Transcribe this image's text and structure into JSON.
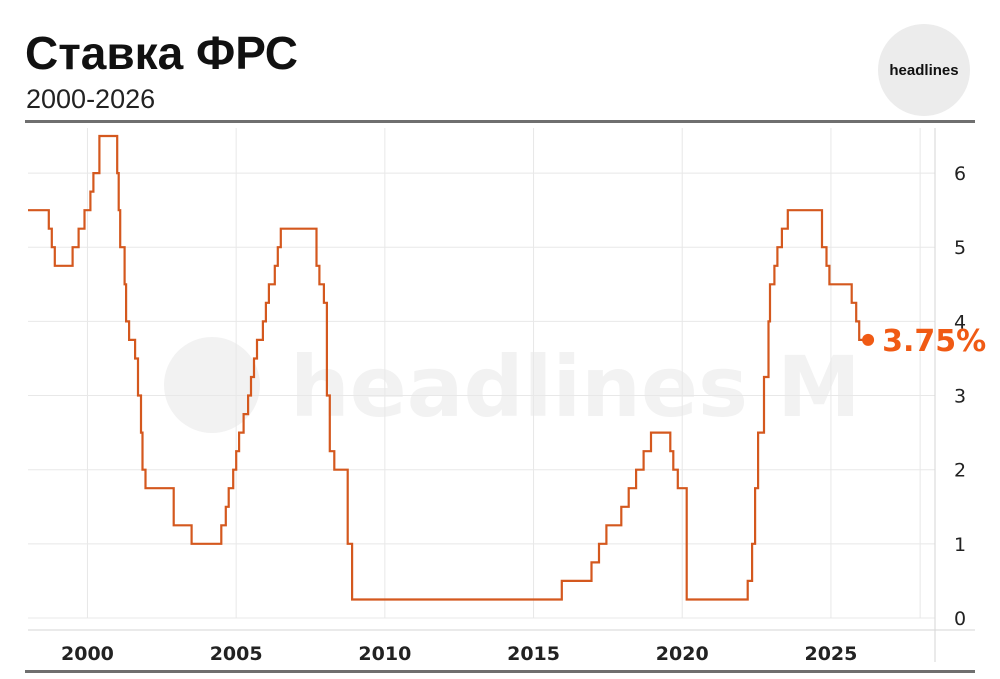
{
  "header": {
    "title": "Ставка ФРС",
    "subtitle": "2000-2026",
    "logo_text": "headlines"
  },
  "watermark": {
    "text": "headlines M"
  },
  "colors": {
    "line": "#d4581e",
    "end_label": "#f05a14",
    "grid": "#e8e8e8",
    "rule": "#6f6f6f"
  },
  "chart_data": {
    "type": "line",
    "step": true,
    "title": "Ставка ФРС",
    "subtitle": "2000-2026",
    "xlabel": "",
    "ylabel": "",
    "xlim": [
      1998.0,
      2028.5
    ],
    "ylim": [
      0,
      6.5
    ],
    "x_ticks": [
      2000,
      2005,
      2010,
      2015,
      2020,
      2025
    ],
    "y_ticks": [
      0,
      1,
      2,
      3,
      4,
      5,
      6
    ],
    "y_axis_side": "right",
    "grid": true,
    "legend": "none",
    "end_label": "3.75%",
    "series": [
      {
        "color": "#d4581e",
        "points": [
          [
            1998.0,
            5.5
          ],
          [
            1998.7,
            5.25
          ],
          [
            1998.8,
            5.0
          ],
          [
            1998.9,
            4.75
          ],
          [
            1999.5,
            5.0
          ],
          [
            1999.7,
            5.25
          ],
          [
            1999.9,
            5.5
          ],
          [
            2000.1,
            5.75
          ],
          [
            2000.2,
            6.0
          ],
          [
            2000.4,
            6.5
          ],
          [
            2001.0,
            6.0
          ],
          [
            2001.05,
            5.5
          ],
          [
            2001.1,
            5.0
          ],
          [
            2001.25,
            4.5
          ],
          [
            2001.3,
            4.0
          ],
          [
            2001.4,
            3.75
          ],
          [
            2001.6,
            3.5
          ],
          [
            2001.7,
            3.0
          ],
          [
            2001.8,
            2.5
          ],
          [
            2001.85,
            2.0
          ],
          [
            2001.95,
            1.75
          ],
          [
            2002.9,
            1.25
          ],
          [
            2003.5,
            1.0
          ],
          [
            2004.5,
            1.25
          ],
          [
            2004.65,
            1.5
          ],
          [
            2004.75,
            1.75
          ],
          [
            2004.9,
            2.0
          ],
          [
            2005.0,
            2.25
          ],
          [
            2005.1,
            2.5
          ],
          [
            2005.25,
            2.75
          ],
          [
            2005.4,
            3.0
          ],
          [
            2005.5,
            3.25
          ],
          [
            2005.6,
            3.5
          ],
          [
            2005.7,
            3.75
          ],
          [
            2005.9,
            4.0
          ],
          [
            2006.0,
            4.25
          ],
          [
            2006.1,
            4.5
          ],
          [
            2006.3,
            4.75
          ],
          [
            2006.4,
            5.0
          ],
          [
            2006.5,
            5.25
          ],
          [
            2007.7,
            4.75
          ],
          [
            2007.8,
            4.5
          ],
          [
            2007.95,
            4.25
          ],
          [
            2008.05,
            3.0
          ],
          [
            2008.15,
            2.25
          ],
          [
            2008.3,
            2.0
          ],
          [
            2008.75,
            1.0
          ],
          [
            2008.9,
            0.25
          ],
          [
            2015.95,
            0.5
          ],
          [
            2016.95,
            0.75
          ],
          [
            2017.2,
            1.0
          ],
          [
            2017.45,
            1.25
          ],
          [
            2017.95,
            1.5
          ],
          [
            2018.2,
            1.75
          ],
          [
            2018.45,
            2.0
          ],
          [
            2018.7,
            2.25
          ],
          [
            2018.95,
            2.5
          ],
          [
            2019.6,
            2.25
          ],
          [
            2019.7,
            2.0
          ],
          [
            2019.85,
            1.75
          ],
          [
            2020.15,
            0.25
          ],
          [
            2022.2,
            0.5
          ],
          [
            2022.35,
            1.0
          ],
          [
            2022.45,
            1.75
          ],
          [
            2022.55,
            2.5
          ],
          [
            2022.75,
            3.25
          ],
          [
            2022.9,
            4.0
          ],
          [
            2022.95,
            4.5
          ],
          [
            2023.1,
            4.75
          ],
          [
            2023.2,
            5.0
          ],
          [
            2023.35,
            5.25
          ],
          [
            2023.55,
            5.5
          ],
          [
            2024.7,
            5.0
          ],
          [
            2024.85,
            4.75
          ],
          [
            2024.95,
            4.5
          ],
          [
            2025.7,
            4.25
          ],
          [
            2025.85,
            4.0
          ],
          [
            2025.95,
            3.75
          ],
          [
            2026.25,
            3.75
          ]
        ]
      }
    ]
  }
}
